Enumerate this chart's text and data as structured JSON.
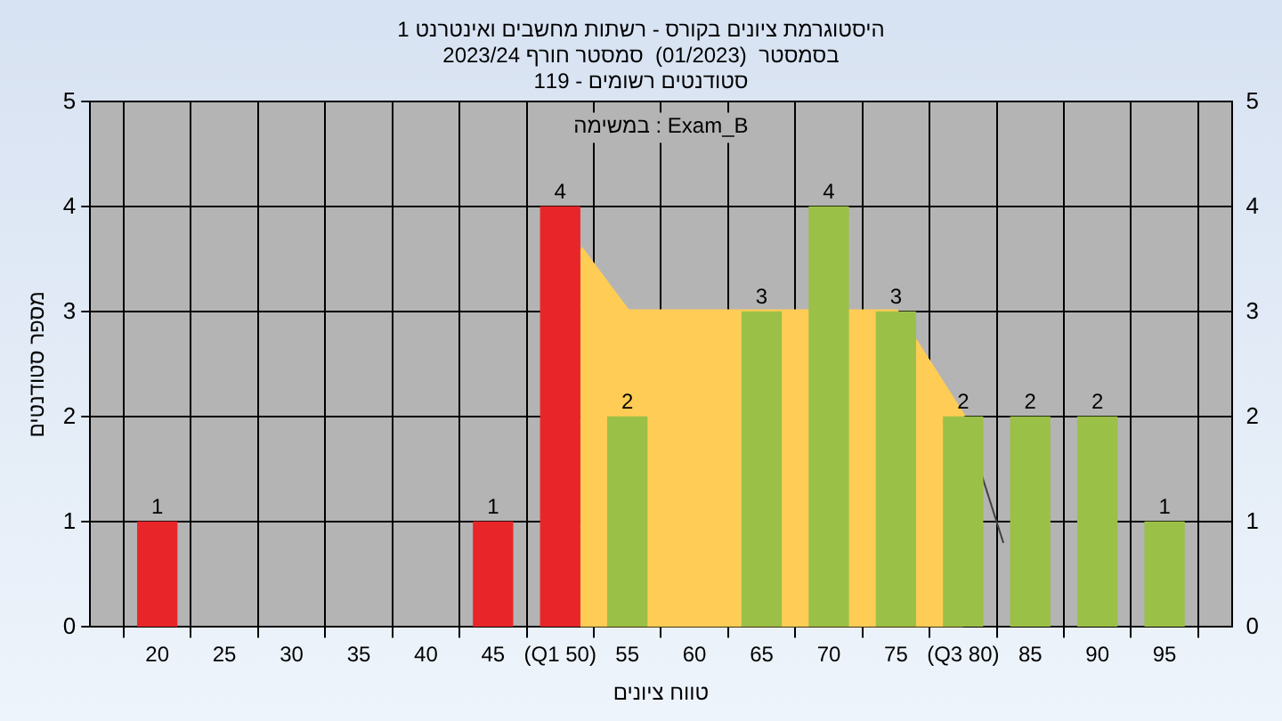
{
  "chart_data": {
    "type": "bar",
    "title": "היסטוגרמת ציונים בקורס - רשתות מחשבים ואינטרנט 1\nבסמסטר  (01/2023)  סמסטר חורף 2023/24\nסטודנטים רשומים - 119",
    "xlabel": "טווח ציונים",
    "ylabel": "מספר סטודנטים",
    "annotations": [
      "במשימה : Exam_B"
    ],
    "series": [
      {
        "type": "area",
        "color": "#ffcc55",
        "x": [
          51.5,
          55,
          75,
          80
        ],
        "values": [
          3.6,
          3,
          3,
          2
        ]
      },
      {
        "type": "line",
        "color": "#404040",
        "x": [
          80,
          83
        ],
        "values": [
          2,
          0.8
        ]
      },
      {
        "x": [
          20,
          45,
          50,
          55,
          65,
          70,
          75,
          80,
          85,
          90,
          95
        ],
        "values": [
          1,
          1,
          4,
          2,
          3,
          4,
          3,
          2,
          2,
          2,
          1
        ],
        "value_labels": [
          "1",
          "1",
          "4",
          "2",
          "3",
          "4",
          "3",
          "2",
          "2",
          "2",
          "1"
        ],
        "colors": [
          "#e8262a",
          "#e8262a",
          "#e8262a",
          "#9bc047",
          "#9bc047",
          "#9bc047",
          "#9bc047",
          "#9bc047",
          "#9bc047",
          "#9bc047",
          "#9bc047"
        ]
      }
    ],
    "xlim": [
      15,
      100
    ],
    "xticks": [
      {
        "value": 15,
        "label": null
      },
      20,
      25,
      30,
      35,
      40,
      45,
      {
        "value": 50,
        "label": "(Q1 50)"
      },
      55,
      60,
      65,
      70,
      75,
      {
        "value": 80,
        "label": "(Q3 80)"
      },
      85,
      90,
      95,
      {
        "value": 100,
        "label": null
      }
    ],
    "ylim": [
      0,
      5
    ],
    "yticks": [
      0,
      1,
      2,
      3,
      4,
      5
    ],
    "y2lim": [
      0,
      5
    ],
    "y2ticks": [
      0,
      1,
      2,
      3,
      4,
      5
    ],
    "grid": true,
    "legend": false
  }
}
